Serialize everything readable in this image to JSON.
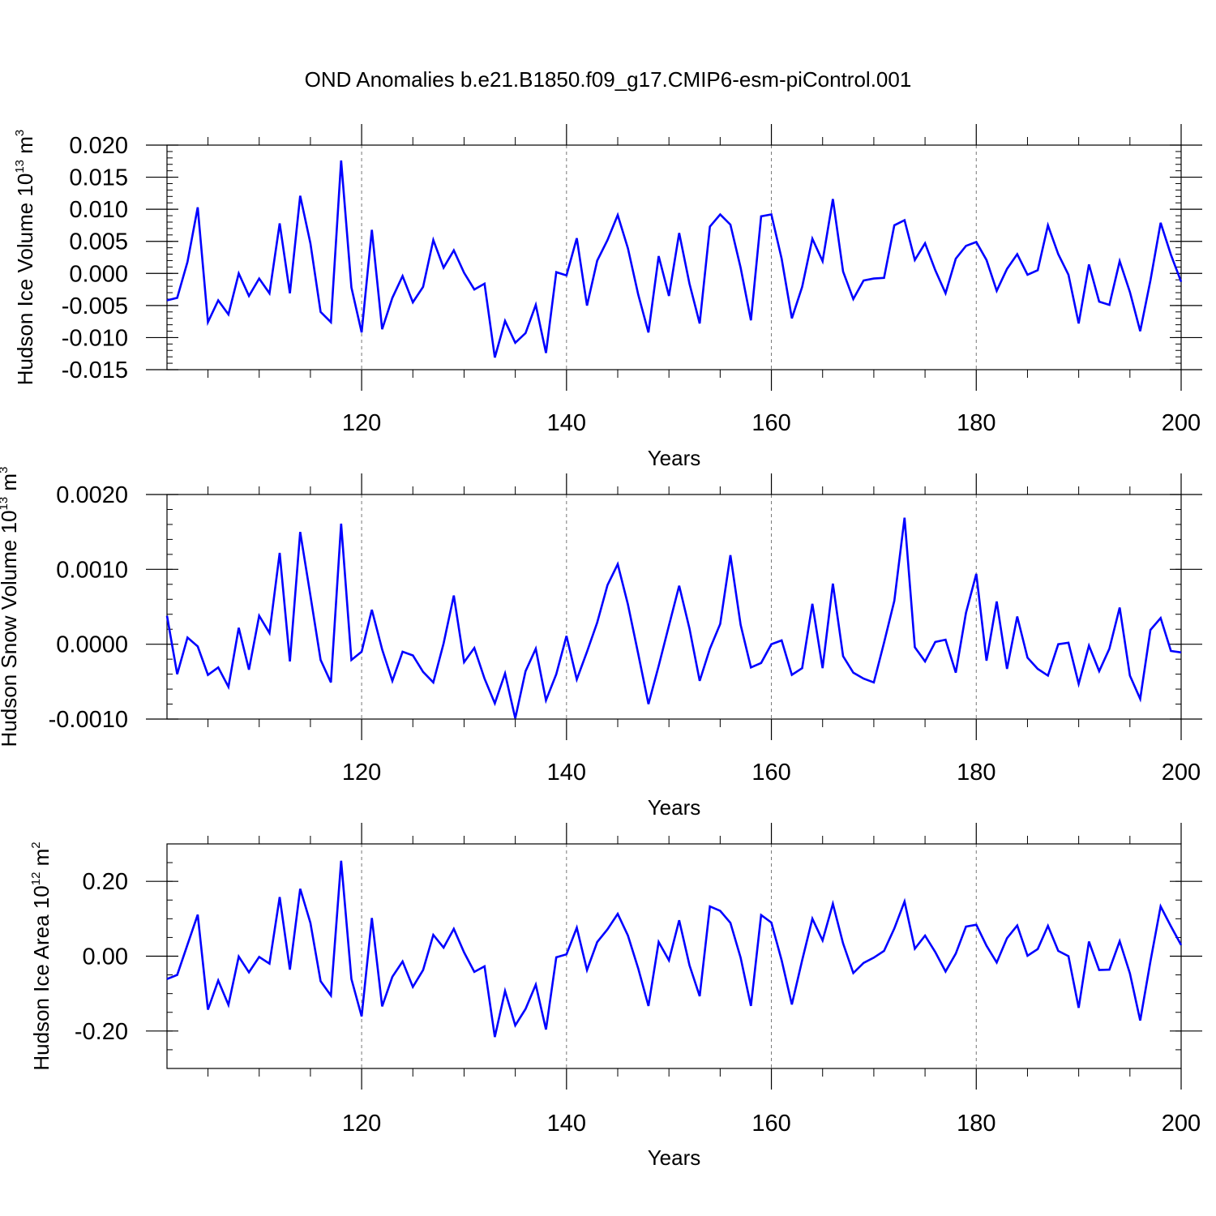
{
  "figure": {
    "title": "OND Anomalies b.e21.B1850.f09_g17.CMIP6-esm-piControl.001",
    "line_color": "#0000ff"
  },
  "chart_data": [
    {
      "type": "line",
      "name": "ice-volume",
      "ylabel": {
        "base": "Hudson Ice Volume 10",
        "exp1": "13",
        "unit": " m",
        "exp2": "3"
      },
      "xlabel": "Years",
      "xlim": [
        101,
        200
      ],
      "ylim": [
        -0.015,
        0.02
      ],
      "xticks": [
        120,
        140,
        160,
        180,
        200
      ],
      "yticks": [
        -0.015,
        -0.01,
        -0.005,
        0.0,
        0.005,
        0.01,
        0.015,
        0.02
      ],
      "yticklabels": [
        "-0.015",
        "-0.010",
        "-0.005",
        "0.000",
        "0.005",
        "0.010",
        "0.015",
        "0.020"
      ],
      "yminor": 0.001,
      "gridlines": [
        120,
        140,
        160,
        180
      ],
      "x_start": 101,
      "values": [
        -0.0042,
        -0.0038,
        0.0018,
        0.0103,
        -0.0076,
        -0.0042,
        -0.0064,
        0.0,
        -0.0035,
        -0.0008,
        -0.0031,
        0.0078,
        -0.0031,
        0.0121,
        0.0047,
        -0.006,
        -0.0076,
        0.0176,
        -0.0022,
        -0.0092,
        0.0068,
        -0.0087,
        -0.0038,
        -0.0004,
        -0.0045,
        -0.0021,
        0.0052,
        0.0009,
        0.0036,
        0.0001,
        -0.0025,
        -0.0016,
        -0.0131,
        -0.0074,
        -0.0108,
        -0.0093,
        -0.0049,
        -0.0124,
        0.0002,
        -0.0003,
        0.0055,
        -0.005,
        0.002,
        0.0052,
        0.0091,
        0.0039,
        -0.0033,
        -0.0092,
        0.0027,
        -0.0035,
        0.0063,
        -0.0016,
        -0.0078,
        0.0073,
        0.0092,
        0.0076,
        0.0009,
        -0.0073,
        0.0089,
        0.0092,
        0.0023,
        -0.007,
        -0.0021,
        0.0054,
        0.0019,
        0.0116,
        0.0003,
        -0.004,
        -0.0011,
        -0.0008,
        -0.0007,
        0.0075,
        0.0083,
        0.0021,
        0.0047,
        0.0005,
        -0.0031,
        0.0023,
        0.0043,
        0.0049,
        0.0021,
        -0.0027,
        0.0007,
        0.003,
        -0.0002,
        0.0005,
        0.0075,
        0.003,
        -0.0002,
        -0.0078,
        0.0014,
        -0.0044,
        -0.0049,
        0.0019,
        -0.0029,
        -0.009,
        -0.0011,
        0.0079,
        0.0029,
        -0.0013
      ]
    },
    {
      "type": "line",
      "name": "snow-volume",
      "ylabel": {
        "base": "Hudson Snow Volume 10",
        "exp1": "13",
        "unit": " m",
        "exp2": "3"
      },
      "xlabel": "Years",
      "xlim": [
        101,
        200
      ],
      "ylim": [
        -0.001,
        0.002
      ],
      "xticks": [
        120,
        140,
        160,
        180,
        200
      ],
      "yticks": [
        -0.001,
        0.0,
        0.001,
        0.002
      ],
      "yticklabels": [
        "-0.0010",
        "0.0000",
        "0.0010",
        "0.0020"
      ],
      "yminor": 0.0002,
      "gridlines": [
        120,
        140,
        160,
        180
      ],
      "x_start": 101,
      "values": [
        0.00038,
        -0.0004,
        9e-05,
        -3e-05,
        -0.00041,
        -0.00031,
        -0.00057,
        0.00022,
        -0.00034,
        0.00038,
        0.00015,
        0.00122,
        -0.00023,
        0.0015,
        0.00065,
        -0.00021,
        -0.00051,
        0.00161,
        -0.00021,
        -0.0001,
        0.00046,
        -7e-05,
        -0.00049,
        -0.0001,
        -0.00015,
        -0.00037,
        -0.00051,
        1e-05,
        0.00065,
        -0.00024,
        -5e-05,
        -0.00046,
        -0.00079,
        -0.00039,
        -0.00099,
        -0.00036,
        -6e-05,
        -0.00075,
        -0.0004,
        0.00011,
        -0.00047,
        -0.0001,
        0.00029,
        0.00079,
        0.00107,
        0.00053,
        -0.00013,
        -0.0008,
        -0.00029,
        0.00025,
        0.00078,
        0.00021,
        -0.00049,
        -6e-05,
        0.00027,
        0.00119,
        0.00026,
        -0.00031,
        -0.00025,
        0.0,
        5e-05,
        -0.00041,
        -0.00032,
        0.00054,
        -0.00032,
        0.00081,
        -0.00016,
        -0.00038,
        -0.00046,
        -0.00051,
        2e-05,
        0.00058,
        0.00169,
        -4e-05,
        -0.00023,
        3e-05,
        6e-05,
        -0.00038,
        0.00042,
        0.00094,
        -0.00022,
        0.00057,
        -0.00033,
        0.00037,
        -0.00018,
        -0.00033,
        -0.00042,
        0.0,
        2e-05,
        -0.00053,
        -2e-05,
        -0.00036,
        -6e-05,
        0.00049,
        -0.00042,
        -0.00073,
        0.00019,
        0.00035,
        -9e-05,
        -0.00011
      ]
    },
    {
      "type": "line",
      "name": "ice-area",
      "ylabel": {
        "base": "Hudson Ice Area 10",
        "exp1": "12",
        "unit": " m",
        "exp2": "2"
      },
      "xlabel": "Years",
      "xlim": [
        101,
        200
      ],
      "ylim": [
        -0.3,
        0.3
      ],
      "xticks": [
        120,
        140,
        160,
        180,
        200
      ],
      "yticks": [
        -0.2,
        0.0,
        0.2
      ],
      "yticklabels": [
        "-0.20",
        "0.00",
        "0.20"
      ],
      "yminor": 0.05,
      "gridlines": [
        120,
        140,
        160,
        180
      ],
      "x_start": 101,
      "values": [
        -0.061,
        -0.05,
        0.031,
        0.111,
        -0.143,
        -0.065,
        -0.13,
        -0.001,
        -0.043,
        -0.002,
        -0.02,
        0.158,
        -0.036,
        0.18,
        0.089,
        -0.067,
        -0.105,
        0.255,
        -0.061,
        -0.161,
        0.102,
        -0.134,
        -0.055,
        -0.014,
        -0.082,
        -0.037,
        0.057,
        0.023,
        0.073,
        0.01,
        -0.042,
        -0.027,
        -0.216,
        -0.093,
        -0.185,
        -0.141,
        -0.076,
        -0.196,
        -0.003,
        0.005,
        0.076,
        -0.037,
        0.038,
        0.072,
        0.113,
        0.055,
        -0.033,
        -0.133,
        0.038,
        -0.011,
        0.096,
        -0.024,
        -0.107,
        0.133,
        0.121,
        0.089,
        -0.004,
        -0.133,
        0.11,
        0.09,
        -0.011,
        -0.129,
        -0.011,
        0.1,
        0.042,
        0.14,
        0.034,
        -0.045,
        -0.018,
        -0.004,
        0.014,
        0.074,
        0.146,
        0.02,
        0.055,
        0.011,
        -0.041,
        0.007,
        0.079,
        0.084,
        0.028,
        -0.017,
        0.048,
        0.082,
        0.001,
        0.019,
        0.081,
        0.014,
        0.0,
        -0.138,
        0.039,
        -0.037,
        -0.036,
        0.04,
        -0.046,
        -0.172,
        -0.014,
        0.133,
        0.08,
        0.03
      ]
    }
  ]
}
